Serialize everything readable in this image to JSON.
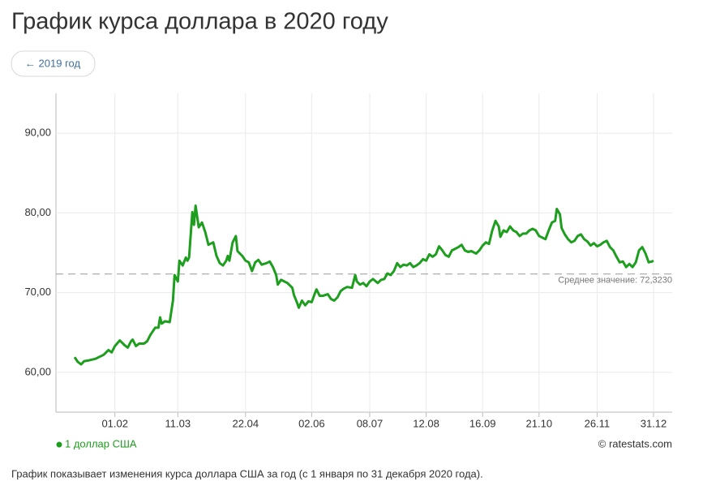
{
  "header": {
    "title": "График курса доллара в 2020 году",
    "nav_button": "← 2019 год"
  },
  "chart_data": {
    "type": "line",
    "x": [
      "07.01",
      "09.01",
      "11.01",
      "13.01",
      "16.01",
      "20.01",
      "22.01",
      "25.01",
      "28.01",
      "30.01",
      "01.02",
      "04.02",
      "07.02",
      "09.02",
      "11.02",
      "12.02",
      "14.02",
      "16.02",
      "19.02",
      "21.02",
      "23.02",
      "26.02",
      "28.02",
      "29.02",
      "01.03",
      "03.03",
      "06.03",
      "08.03",
      "09.03",
      "11.03",
      "12.03",
      "14.03",
      "16.03",
      "17.03",
      "18.03",
      "20.03",
      "21.03",
      "22.03",
      "24.03",
      "26.03",
      "28.03",
      "30.03",
      "02.04",
      "04.04",
      "06.04",
      "08.04",
      "10.04",
      "11.04",
      "12.04",
      "14.04",
      "16.04",
      "17.04",
      "20.04",
      "22.04",
      "24.04",
      "26.04",
      "28.04",
      "30.04",
      "02.05",
      "05.05",
      "07.05",
      "09.05",
      "11.05",
      "12.05",
      "14.05",
      "16.05",
      "18.05",
      "21.05",
      "22.05",
      "24.05",
      "25.05",
      "27.05",
      "29.05",
      "31.05",
      "02.06",
      "04.06",
      "05.06",
      "07.06",
      "09.06",
      "12.06",
      "14.06",
      "16.06",
      "18.06",
      "20.06",
      "22.06",
      "24.06",
      "27.06",
      "29.06",
      "30.06",
      "02.07",
      "04.07",
      "06.07",
      "08.07",
      "10.07",
      "13.07",
      "15.07",
      "17.07",
      "19.07",
      "21.07",
      "23.07",
      "25.07",
      "27.07",
      "29.07",
      "31.07",
      "02.08",
      "04.08",
      "06.08",
      "08.08",
      "10.08",
      "12.08",
      "14.08",
      "16.08",
      "18.08",
      "20.08",
      "22.08",
      "24.08",
      "26.08",
      "28.08",
      "30.08",
      "01.09",
      "03.09",
      "05.09",
      "07.09",
      "09.09",
      "12.09",
      "14.09",
      "16.09",
      "18.09",
      "20.09",
      "22.09",
      "24.09",
      "26.09",
      "27.09",
      "29.09",
      "01.10",
      "03.10",
      "05.10",
      "07.10",
      "09.10",
      "11.10",
      "13.10",
      "15.10",
      "17.10",
      "19.10",
      "21.10",
      "23.10",
      "25.10",
      "27.10",
      "29.10",
      "31.10",
      "01.11",
      "03.11",
      "04.11",
      "06.11",
      "08.11",
      "10.11",
      "12.11",
      "14.11",
      "16.11",
      "18.11",
      "20.11",
      "22.11",
      "24.11",
      "26.11",
      "28.11",
      "30.11",
      "02.12",
      "04.12",
      "06.12",
      "08.12",
      "10.12",
      "12.12",
      "14.12",
      "16.12",
      "18.12",
      "20.12",
      "22.12",
      "24.12",
      "26.12",
      "28.12",
      "30.12",
      "31.12"
    ],
    "series": [
      {
        "name": "1 доллар США",
        "color": "#1e9e1e",
        "values": [
          61.9,
          61.3,
          61.0,
          61.4,
          61.5,
          61.7,
          61.9,
          62.2,
          62.8,
          62.5,
          63.3,
          64.0,
          63.4,
          63.1,
          63.9,
          64.1,
          63.3,
          63.6,
          63.6,
          63.9,
          64.7,
          65.6,
          65.6,
          66.9,
          66.1,
          66.4,
          66.3,
          69.0,
          72.2,
          71.4,
          74.0,
          73.4,
          74.4,
          74.0,
          74.4,
          80.1,
          78.5,
          80.9,
          78.2,
          78.8,
          77.6,
          76.0,
          76.3,
          74.6,
          73.7,
          73.4,
          74.0,
          74.6,
          74.0,
          76.3,
          77.1,
          75.2,
          74.6,
          74.0,
          73.8,
          72.7,
          73.8,
          74.1,
          73.5,
          73.7,
          73.9,
          73.2,
          72.2,
          71.0,
          71.6,
          71.4,
          71.2,
          70.6,
          69.7,
          68.7,
          68.1,
          69.0,
          68.4,
          68.9,
          68.8,
          69.9,
          70.4,
          69.6,
          69.6,
          69.8,
          69.2,
          69.0,
          69.4,
          70.2,
          70.5,
          70.7,
          70.6,
          72.2,
          71.4,
          71.0,
          71.2,
          70.8,
          71.4,
          71.7,
          71.2,
          71.6,
          71.7,
          72.4,
          72.2,
          72.7,
          73.7,
          73.2,
          73.5,
          73.4,
          73.7,
          73.2,
          73.4,
          73.7,
          74.2,
          74.0,
          74.8,
          74.5,
          74.8,
          75.8,
          75.3,
          74.7,
          74.5,
          75.3,
          75.5,
          75.7,
          76.0,
          75.3,
          75.1,
          75.2,
          74.9,
          75.3,
          75.9,
          76.3,
          76.1,
          77.8,
          79.0,
          78.3,
          77.0,
          77.8,
          77.6,
          78.3,
          77.8,
          77.6,
          77.1,
          77.4,
          77.4,
          77.8,
          78.0,
          77.8,
          77.1,
          76.9,
          76.7,
          77.8,
          78.8,
          79.0,
          80.5,
          79.8,
          78.1,
          77.3,
          76.7,
          76.3,
          76.5,
          77.1,
          77.3,
          76.7,
          76.4,
          75.9,
          76.2,
          75.8,
          76.0,
          76.3,
          76.5,
          75.7,
          75.3,
          74.5,
          73.8,
          73.9,
          73.2,
          73.6,
          73.2,
          73.8,
          75.3,
          75.7,
          74.9,
          73.8,
          73.9,
          74.0
        ]
      }
    ],
    "ylim": [
      55,
      95
    ],
    "yticks": [
      {
        "value": 60,
        "label": "60,00"
      },
      {
        "value": 70,
        "label": "70,00"
      },
      {
        "value": 80,
        "label": "80,00"
      },
      {
        "value": 90,
        "label": "90,00"
      }
    ],
    "xticks": [
      "01.02",
      "11.03",
      "22.04",
      "02.06",
      "08.07",
      "12.08",
      "16.09",
      "21.10",
      "26.11",
      "31.12"
    ],
    "grid": true,
    "mean": {
      "value": 72.323,
      "label": "Среднее значение: 72,3230"
    },
    "source": "© ratestats.com"
  },
  "footer": {
    "note": "График показывает изменения курса доллара США за год (с 1 января по 31 декабря 2020 года)."
  }
}
